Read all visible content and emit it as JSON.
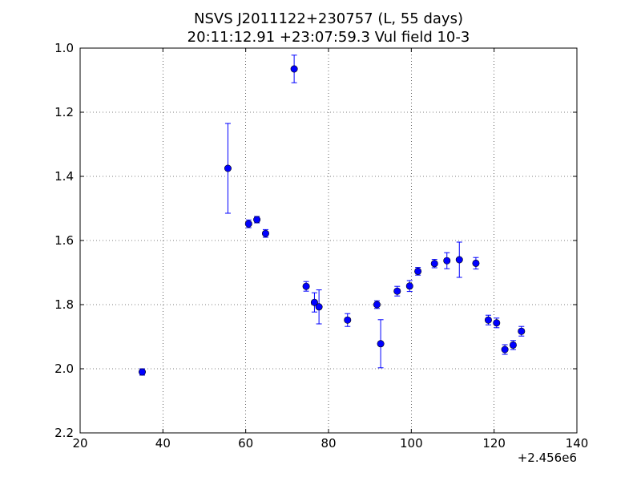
{
  "chart_data": {
    "type": "scatter",
    "title_lines": [
      "NSVS J2011122+230757 (L, 55 days)",
      "20:11:12.91 +23:07:59.3 Vul field 10-3"
    ],
    "xlabel": "",
    "ylabel": "",
    "xlim": [
      20,
      140
    ],
    "ylim": [
      1.0,
      2.2
    ],
    "y_inverted": true,
    "x_ticks": [
      20,
      40,
      60,
      80,
      100,
      120,
      140
    ],
    "x_tick_labels": [
      "20",
      "40",
      "60",
      "80",
      "100",
      "120",
      "140"
    ],
    "y_ticks": [
      1.0,
      1.2,
      1.4,
      1.6,
      1.8,
      2.0,
      2.2
    ],
    "y_tick_labels": [
      "1.0",
      "1.2",
      "1.4",
      "1.6",
      "1.8",
      "2.0",
      "2.2"
    ],
    "x_offset_label": "+2.456e6",
    "grid": true,
    "marker_color": "#0000ff",
    "errorbar_color": "#0000ff",
    "series": [
      {
        "points": [
          {
            "x": 35.0,
            "y": 2.01,
            "err": 0.01
          },
          {
            "x": 55.7,
            "y": 1.375,
            "err": 0.14
          },
          {
            "x": 60.7,
            "y": 1.548,
            "err": 0.012
          },
          {
            "x": 62.7,
            "y": 1.535,
            "err": 0.01
          },
          {
            "x": 64.8,
            "y": 1.578,
            "err": 0.012
          },
          {
            "x": 71.7,
            "y": 1.065,
            "err": 0.043
          },
          {
            "x": 74.6,
            "y": 1.743,
            "err": 0.015
          },
          {
            "x": 76.6,
            "y": 1.793,
            "err": 0.03
          },
          {
            "x": 77.7,
            "y": 1.807,
            "err": 0.053
          },
          {
            "x": 84.6,
            "y": 1.848,
            "err": 0.02
          },
          {
            "x": 91.7,
            "y": 1.8,
            "err": 0.012
          },
          {
            "x": 92.6,
            "y": 1.922,
            "err": 0.075
          },
          {
            "x": 96.6,
            "y": 1.758,
            "err": 0.015
          },
          {
            "x": 99.6,
            "y": 1.742,
            "err": 0.017
          },
          {
            "x": 101.6,
            "y": 1.696,
            "err": 0.012
          },
          {
            "x": 105.6,
            "y": 1.672,
            "err": 0.013
          },
          {
            "x": 108.6,
            "y": 1.663,
            "err": 0.025
          },
          {
            "x": 111.6,
            "y": 1.66,
            "err": 0.055
          },
          {
            "x": 115.6,
            "y": 1.671,
            "err": 0.018
          },
          {
            "x": 118.6,
            "y": 1.848,
            "err": 0.015
          },
          {
            "x": 120.6,
            "y": 1.857,
            "err": 0.015
          },
          {
            "x": 122.6,
            "y": 1.94,
            "err": 0.015
          },
          {
            "x": 124.6,
            "y": 1.926,
            "err": 0.014
          },
          {
            "x": 126.6,
            "y": 1.883,
            "err": 0.015
          }
        ]
      }
    ]
  }
}
